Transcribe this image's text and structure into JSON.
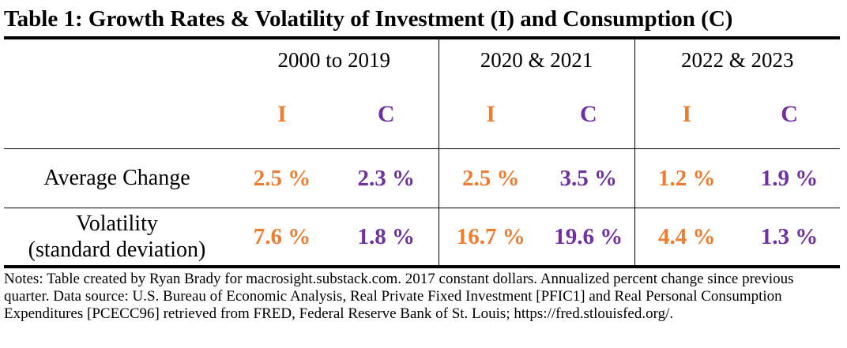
{
  "title": "Table 1: Growth Rates & Volatility of Investment (I) and Consumption (C)",
  "periods": [
    "2000 to 2019",
    "2020 & 2021",
    "2022 & 2023"
  ],
  "series_labels": {
    "investment": "I",
    "consumption": "C"
  },
  "colors": {
    "investment": "#ed7d31",
    "consumption": "#7030a0"
  },
  "rows": [
    {
      "label": "Average Change",
      "values": [
        "2.5 %",
        "2.3 %",
        "2.5 %",
        "3.5 %",
        "1.2 %",
        "1.9 %"
      ]
    },
    {
      "label_line1": "Volatility",
      "label_line2": "(standard deviation)",
      "values": [
        "7.6 %",
        "1.8 %",
        "16.7 %",
        "19.6 %",
        "4.4 %",
        "1.3 %"
      ]
    }
  ],
  "notes": "Notes: Table created by Ryan Brady for macrosight.substack.com. 2017 constant dollars. Annualized percent change since previous quarter. Data source: U.S. Bureau of Economic Analysis, Real Private Fixed Investment [PFIC1] and Real Personal Consumption Expenditures [PCECC96] retrieved from FRED, Federal Reserve Bank of St. Louis; https://fred.stlouisfed.org/."
}
